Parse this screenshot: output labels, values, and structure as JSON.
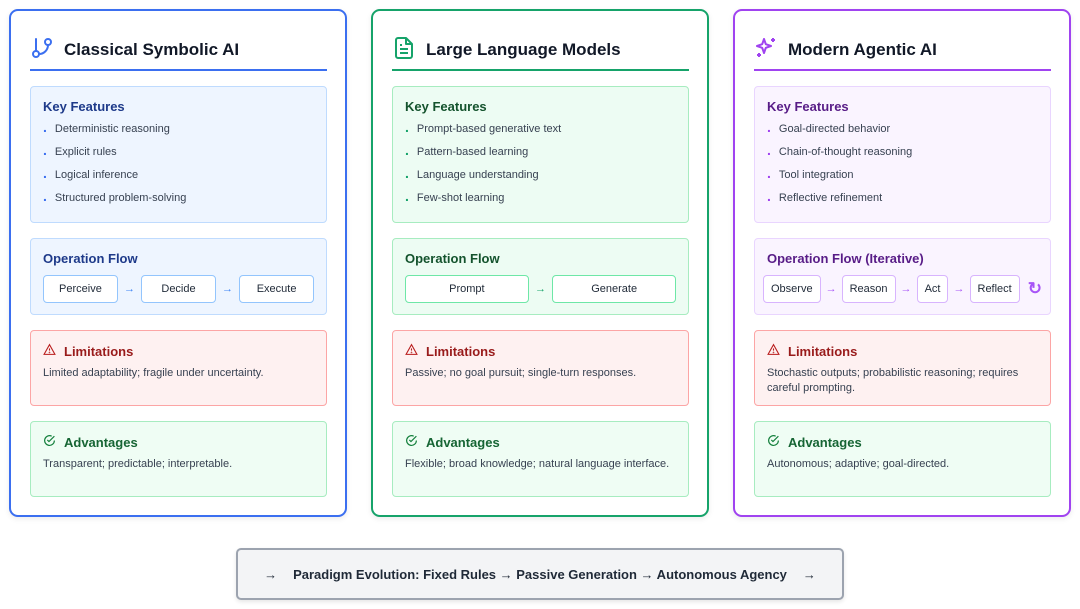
{
  "columns": [
    {
      "title": "Classical Symbolic AI",
      "icon": "git-branch-icon",
      "accent": "#3b6ff0",
      "features_title": "Key Features",
      "features": [
        "Deterministic reasoning",
        "Explicit rules",
        "Logical inference",
        "Structured problem-solving"
      ],
      "flow_title": "Operation Flow",
      "flow": [
        "Perceive",
        "Decide",
        "Execute"
      ],
      "limitations_title": "Limitations",
      "limitations": "Limited adaptability; fragile under uncertainty.",
      "advantages_title": "Advantages",
      "advantages": "Transparent; predictable; interpretable."
    },
    {
      "title": "Large Language Models",
      "icon": "document-icon",
      "accent": "#16a36a",
      "features_title": "Key Features",
      "features": [
        "Prompt-based generative text",
        "Pattern-based learning",
        "Language understanding",
        "Few-shot learning"
      ],
      "flow_title": "Operation Flow",
      "flow": [
        "Prompt",
        "Generate"
      ],
      "limitations_title": "Limitations",
      "limitations": "Passive; no goal pursuit; single-turn responses.",
      "advantages_title": "Advantages",
      "advantages": "Flexible; broad knowledge; natural language interface."
    },
    {
      "title": "Modern Agentic AI",
      "icon": "sparkles-icon",
      "accent": "#a043f0",
      "features_title": "Key Features",
      "features": [
        "Goal-directed behavior",
        "Chain-of-thought reasoning",
        "Tool integration",
        "Reflective refinement"
      ],
      "flow_title": "Operation Flow (Iterative)",
      "flow": [
        "Observe",
        "Reason",
        "Act",
        "Reflect"
      ],
      "limitations_title": "Limitations",
      "limitations": "Stochastic outputs; probabilistic reasoning; requires careful prompting.",
      "advantages_title": "Advantages",
      "advantages": "Autonomous; adaptive; goal-directed."
    }
  ],
  "arrow": "→",
  "loop_icon": "↻",
  "footer": "Paradigm Evolution: Fixed Rules → Passive Generation → Autonomous Agency"
}
